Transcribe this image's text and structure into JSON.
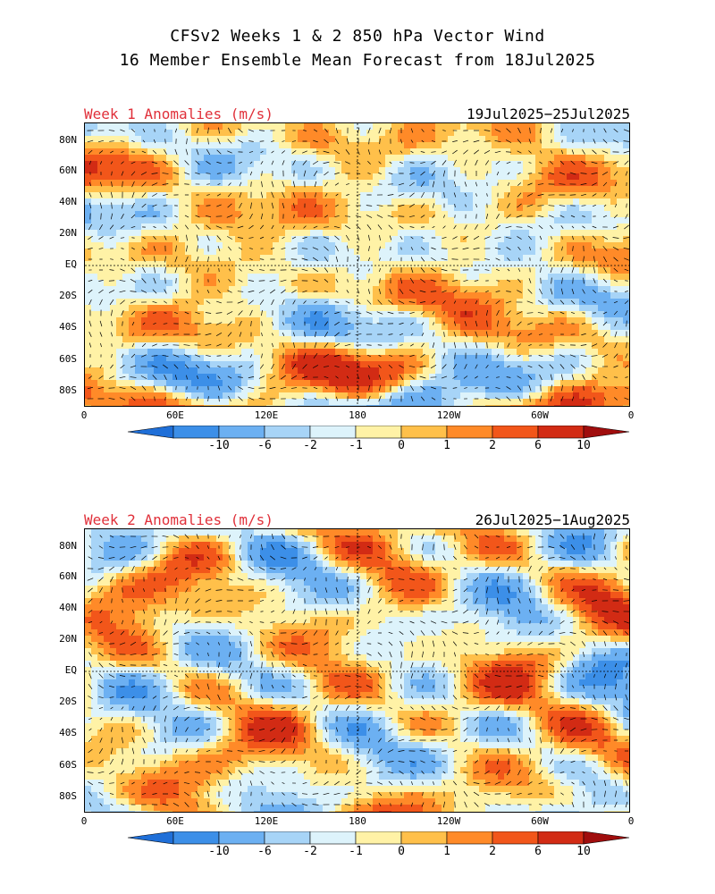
{
  "title_line1": "CFSv2 Weeks 1 & 2 850 hPa Vector Wind",
  "title_line2": "16 Member Ensemble Mean Forecast from 18Jul2025",
  "lat_labels": [
    "80N",
    "60N",
    "40N",
    "20N",
    "EQ",
    "20S",
    "40S",
    "60S",
    "80S"
  ],
  "lon_labels": [
    "0",
    "60E",
    "120E",
    "180",
    "120W",
    "60W",
    "0"
  ],
  "colorbar": {
    "labels": [
      "-10",
      "-6",
      "-2",
      "-1",
      "0",
      "1",
      "2",
      "6",
      "10"
    ],
    "colors": [
      "#1f6fd8",
      "#3c8fe8",
      "#6cb0f2",
      "#a7d4f7",
      "#ddf3fb",
      "#fff2a6",
      "#ffc04a",
      "#ff8a28",
      "#f2561a",
      "#d22b14",
      "#a00d0d"
    ]
  },
  "panels": [
    {
      "label": "Week 1 Anomalies (m/s)",
      "dates": "19Jul2025−25Jul2025"
    },
    {
      "label": "Week 2 Anomalies (m/s)",
      "dates": "26Jul2025−1Aug2025"
    }
  ]
}
